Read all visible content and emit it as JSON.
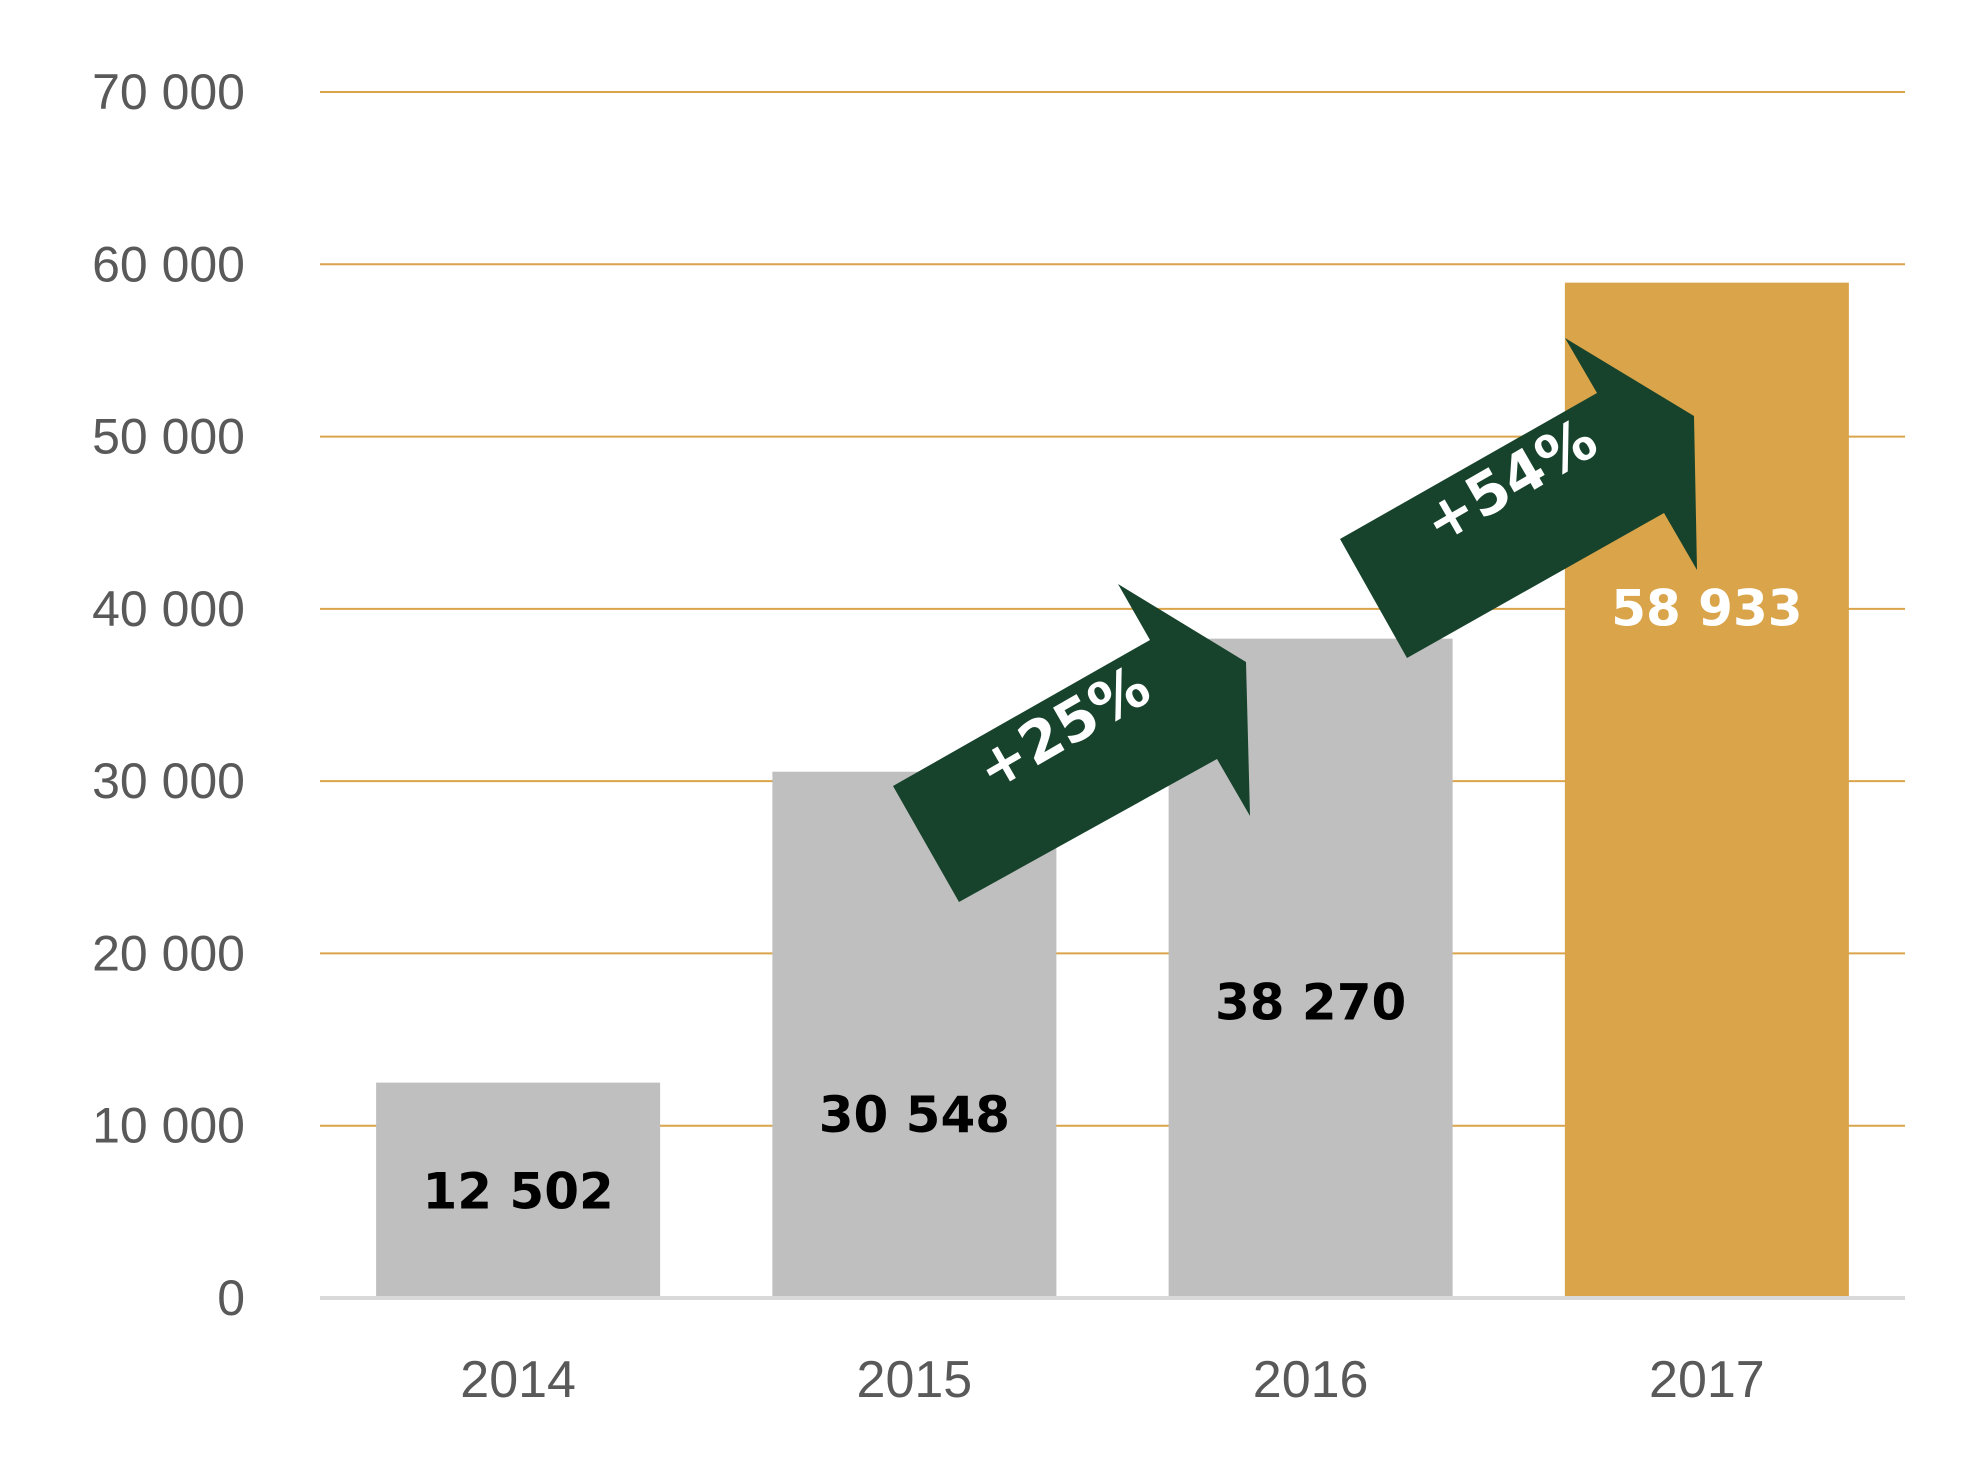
{
  "chart_data": {
    "type": "bar",
    "title": "",
    "xlabel": "",
    "ylabel": "",
    "categories": [
      "2014",
      "2015",
      "2016",
      "2017"
    ],
    "values": [
      12502,
      30548,
      38270,
      58933
    ],
    "value_labels": [
      "12 502",
      "30 548",
      "38 270",
      "58 933"
    ],
    "ylim": [
      0,
      70000
    ],
    "y_ticks": [
      0,
      10000,
      20000,
      30000,
      40000,
      50000,
      60000,
      70000
    ],
    "y_tick_labels": [
      "0",
      "10 000",
      "20 000",
      "30 000",
      "40 000",
      "50 000",
      "60 000",
      "70 000"
    ],
    "grid": true,
    "legend": "none",
    "annotations": [
      {
        "text": "+25%",
        "from": "2015",
        "to": "2016"
      },
      {
        "text": "+54%",
        "from": "2016",
        "to": "2017"
      }
    ],
    "colors": {
      "bar_default": "#bfbfbf",
      "bar_highlight": "#d9a44a",
      "highlight_index": 3,
      "gridline": "#d9a44a",
      "baseline": "#d9d9d9",
      "arrow": "#17432c",
      "label_dark": "#000000",
      "label_light": "#ffffff"
    }
  }
}
